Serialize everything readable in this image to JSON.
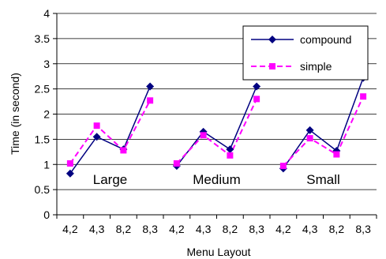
{
  "chart_data": {
    "type": "line",
    "xlabel": "Menu Layout",
    "ylabel": "Time  (in second)",
    "ylim": [
      0,
      4
    ],
    "yticks": [
      "0",
      "0.5",
      "1",
      "1.5",
      "2",
      "2.5",
      "3",
      "3.5",
      "4"
    ],
    "grid": "horizontal",
    "legend_position": "top-right",
    "groups": [
      {
        "label": "Large",
        "categories": [
          "4,2",
          "4,3",
          "8,2",
          "8,3"
        ]
      },
      {
        "label": "Medium",
        "categories": [
          "4,2",
          "4,3",
          "8,2",
          "8,3"
        ]
      },
      {
        "label": "Small",
        "categories": [
          "4,2",
          "4,3",
          "8,2",
          "8,3"
        ]
      }
    ],
    "series": [
      {
        "name": "compound",
        "color": "#000080",
        "marker": "diamond",
        "line": "solid",
        "values": [
          [
            0.82,
            1.55,
            1.3,
            2.55
          ],
          [
            0.97,
            1.65,
            1.3,
            2.55
          ],
          [
            0.92,
            1.68,
            1.27,
            2.72
          ]
        ]
      },
      {
        "name": "simple",
        "color": "#ff00ff",
        "marker": "square",
        "line": "dashed",
        "values": [
          [
            1.02,
            1.77,
            1.28,
            2.27
          ],
          [
            1.02,
            1.58,
            1.18,
            2.3
          ],
          [
            0.97,
            1.52,
            1.2,
            2.35
          ]
        ]
      }
    ]
  }
}
